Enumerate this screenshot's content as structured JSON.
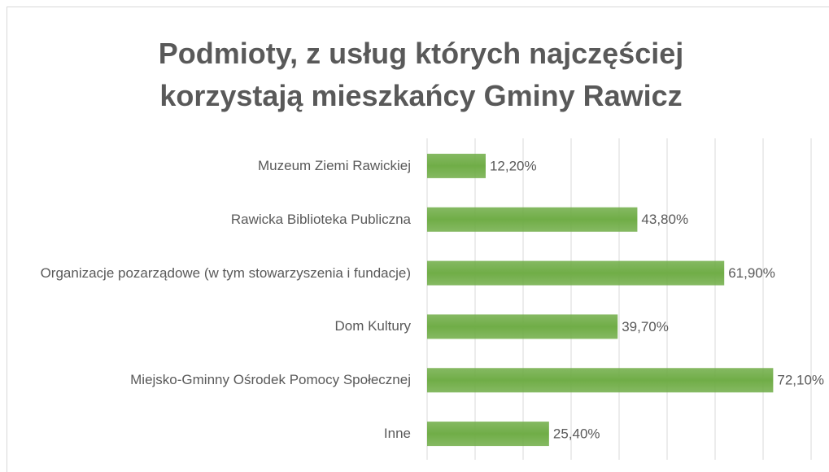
{
  "chart_data": {
    "type": "bar",
    "orientation": "horizontal",
    "title": "Podmioty, z usług których najczęściej korzystają mieszkańcy Gminy Rawicz",
    "categories": [
      "Muzeum Ziemi Rawickiej",
      "Rawicka Biblioteka Publiczna",
      "Organizacje pozarządowe (w tym stowarzyszenia i fundacje)",
      "Dom Kultury",
      "Miejsko-Gminny Ośrodek Pomocy Społecznej",
      "Inne"
    ],
    "values": [
      12.2,
      43.8,
      61.9,
      39.7,
      72.1,
      25.4
    ],
    "value_labels": [
      "12,20%",
      "43,80%",
      "61,90%",
      "39,70%",
      "72,10%",
      "25,40%"
    ],
    "color": "#70ad47",
    "xlim": [
      0,
      80
    ],
    "xticks": [
      0,
      10,
      20,
      30,
      40,
      50,
      60,
      70,
      80
    ],
    "grid": true
  }
}
